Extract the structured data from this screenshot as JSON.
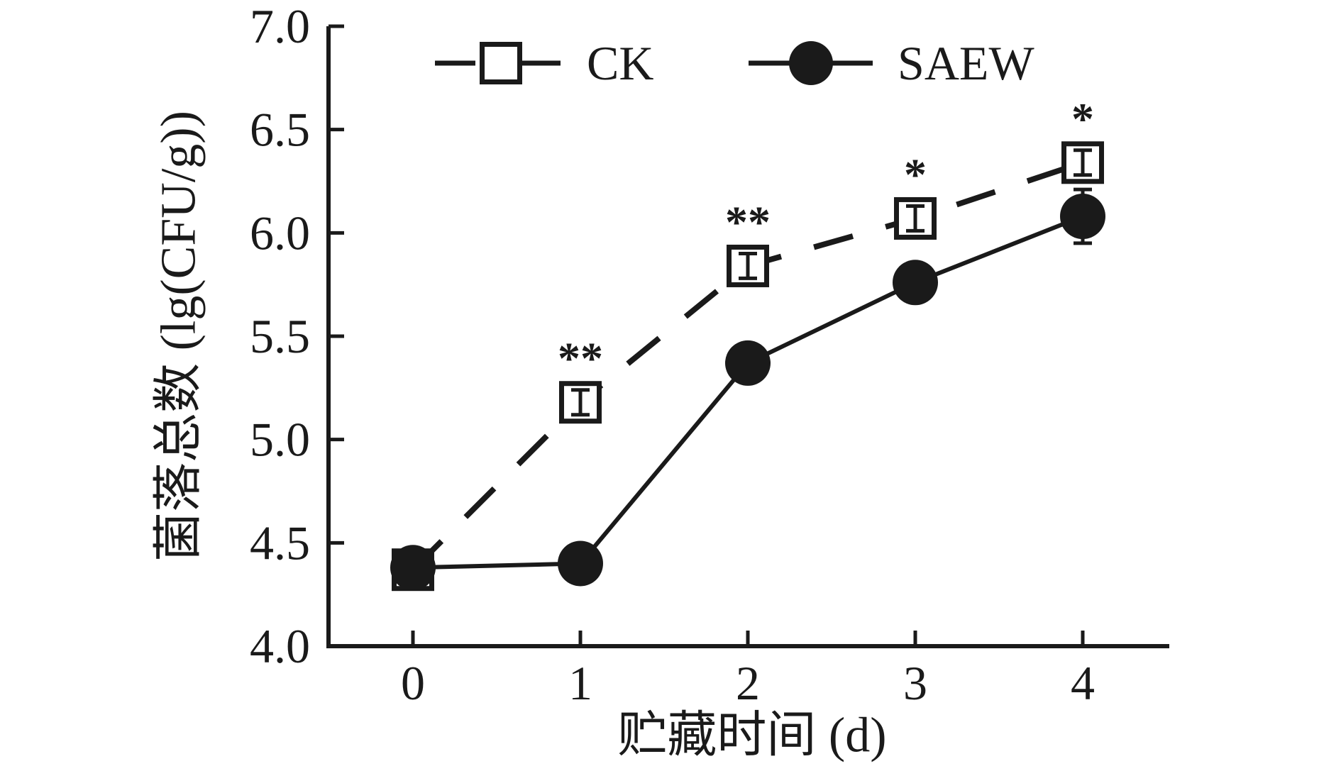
{
  "chart_data": {
    "type": "line",
    "title": "",
    "xlabel": "贮藏时间 (d)",
    "ylabel": "菌落总数 (lg(CFU/g))",
    "x": [
      0,
      1,
      2,
      3,
      4
    ],
    "xticks": [
      "0",
      "1",
      "2",
      "3",
      "4"
    ],
    "yticks": [
      "7.0",
      "6.5",
      "6.0",
      "5.5",
      "5.0",
      "4.5",
      "4.0"
    ],
    "ylim": [
      4.0,
      7.0
    ],
    "xlim": [
      -0.5,
      4.5
    ],
    "ytick_step": 0.5,
    "grid": false,
    "legend_position": "top-center",
    "series": [
      {
        "name": "CK",
        "marker": "open-square",
        "line_style": "dashed",
        "values": [
          4.37,
          5.18,
          5.84,
          6.07,
          6.34
        ],
        "errors": [
          0.05,
          0.06,
          0.06,
          0.06,
          0.06
        ],
        "annotations": [
          "",
          "**",
          "**",
          "*",
          "*"
        ]
      },
      {
        "name": "SAEW",
        "marker": "filled-circle",
        "line_style": "solid",
        "values": [
          4.38,
          4.4,
          5.37,
          5.76,
          6.08
        ],
        "errors": [
          0.05,
          0.05,
          0.05,
          0.05,
          0.13
        ],
        "annotations": [
          "",
          "",
          "",
          "",
          ""
        ]
      }
    ],
    "colors": {
      "ink": "#1a1a1a",
      "background": "#ffffff"
    }
  }
}
